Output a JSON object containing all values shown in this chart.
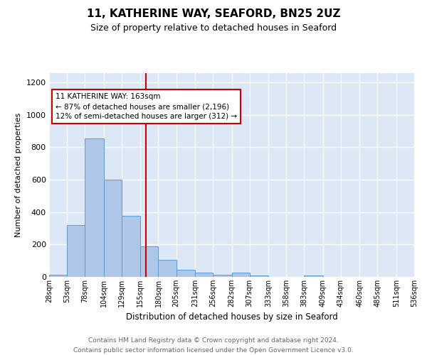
{
  "title": "11, KATHERINE WAY, SEAFORD, BN25 2UZ",
  "subtitle": "Size of property relative to detached houses in Seaford",
  "xlabel": "Distribution of detached houses by size in Seaford",
  "ylabel": "Number of detached properties",
  "bar_edges": [
    28,
    53,
    78,
    104,
    129,
    155,
    180,
    205,
    231,
    256,
    282,
    307,
    333,
    358,
    383,
    409,
    434,
    460,
    485,
    511,
    536
  ],
  "bar_heights": [
    15,
    320,
    855,
    600,
    375,
    190,
    105,
    45,
    25,
    15,
    25,
    10,
    0,
    0,
    10,
    0,
    0,
    0,
    0,
    0
  ],
  "bar_color": "#aec6e8",
  "bar_edge_color": "#5b9bd5",
  "property_size": 163,
  "marker_line_color": "#cc0000",
  "annotation_text": "11 KATHERINE WAY: 163sqm\n← 87% of detached houses are smaller (2,196)\n12% of semi-detached houses are larger (312) →",
  "annotation_box_color": "#ffffff",
  "annotation_box_edge_color": "#cc0000",
  "ylim": [
    0,
    1260
  ],
  "yticks": [
    0,
    200,
    400,
    600,
    800,
    1000,
    1200
  ],
  "background_color": "#dce8f5",
  "grid_color": "#ffffff",
  "footer_text": "Contains HM Land Registry data © Crown copyright and database right 2024.\nContains public sector information licensed under the Open Government Licence v3.0.",
  "tick_labels": [
    "28sqm",
    "53sqm",
    "78sqm",
    "104sqm",
    "129sqm",
    "155sqm",
    "180sqm",
    "205sqm",
    "231sqm",
    "256sqm",
    "282sqm",
    "307sqm",
    "333sqm",
    "358sqm",
    "383sqm",
    "409sqm",
    "434sqm",
    "460sqm",
    "485sqm",
    "511sqm",
    "536sqm"
  ],
  "title_fontsize": 11,
  "subtitle_fontsize": 9,
  "ylabel_fontsize": 8,
  "xlabel_fontsize": 8.5,
  "tick_fontsize": 7,
  "ytick_fontsize": 8,
  "footer_fontsize": 6.5,
  "annot_fontsize": 7.5
}
